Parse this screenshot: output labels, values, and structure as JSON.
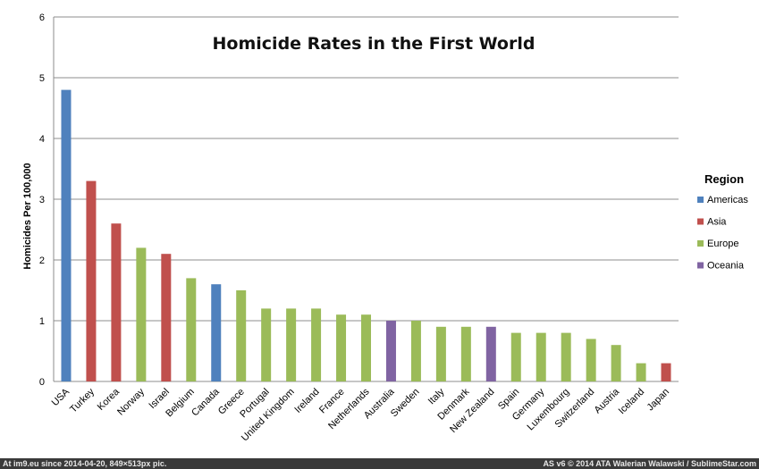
{
  "chart_data": {
    "type": "bar",
    "title": "Homicide Rates in the First World",
    "ylabel": "Homicides Per 100,000",
    "xlabel": "",
    "ylim": [
      0,
      6
    ],
    "yticks": [
      "0",
      "1",
      "2",
      "3",
      "4",
      "5",
      "6"
    ],
    "grid": true,
    "legend": {
      "title": "Region",
      "position": "right",
      "entries": [
        {
          "name": "Americas",
          "color": "#4F81BD"
        },
        {
          "name": "Asia",
          "color": "#C0504D"
        },
        {
          "name": "Europe",
          "color": "#9BBB59"
        },
        {
          "name": "Oceania",
          "color": "#8064A2"
        }
      ]
    },
    "categories": [
      "USA",
      "Turkey",
      "Korea",
      "Norway",
      "Israel",
      "Belgium",
      "Canada",
      "Greece",
      "Portugal",
      "United Kingdom",
      "Ireland",
      "France",
      "Netherlands",
      "Australia",
      "Sweden",
      "Italy",
      "Denmark",
      "New Zealand",
      "Spain",
      "Germany",
      "Luxembourg",
      "Switzerland",
      "Austria",
      "Iceland",
      "Japan"
    ],
    "values": [
      4.8,
      3.3,
      2.6,
      2.2,
      2.1,
      1.7,
      1.6,
      1.5,
      1.2,
      1.2,
      1.2,
      1.1,
      1.1,
      1.0,
      1.0,
      0.9,
      0.9,
      0.9,
      0.8,
      0.8,
      0.8,
      0.7,
      0.6,
      0.3,
      0.3
    ],
    "regions": [
      "Americas",
      "Asia",
      "Asia",
      "Europe",
      "Asia",
      "Europe",
      "Americas",
      "Europe",
      "Europe",
      "Europe",
      "Europe",
      "Europe",
      "Europe",
      "Oceania",
      "Europe",
      "Europe",
      "Europe",
      "Oceania",
      "Europe",
      "Europe",
      "Europe",
      "Europe",
      "Europe",
      "Europe",
      "Asia"
    ]
  },
  "footer": {
    "left": "At im9.eu  since 2014-04-20, 849×513px pic.",
    "right": "AS v6 © 2014 ATA Walerian Walawski / SublimeStar.com"
  }
}
